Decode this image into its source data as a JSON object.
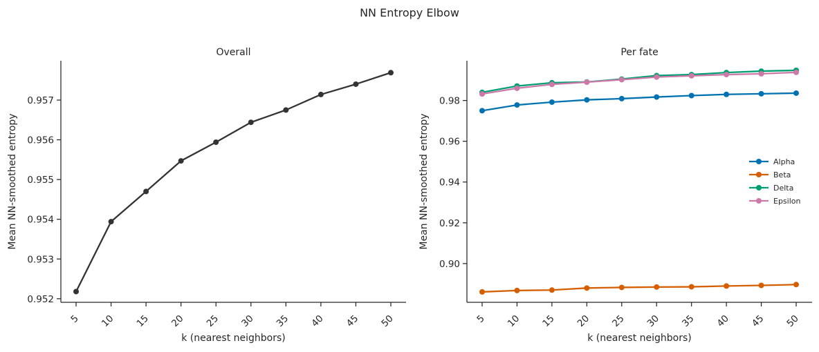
{
  "figure": {
    "title": "NN Entropy Elbow"
  },
  "chart_data": [
    {
      "type": "line",
      "title": "Overall",
      "xlabel": "k (nearest neighbors)",
      "ylabel": "Mean NN-smoothed entropy",
      "x": [
        5,
        10,
        15,
        20,
        25,
        30,
        35,
        40,
        45,
        50
      ],
      "x_tick_labels": [
        "5",
        "10",
        "15",
        "20",
        "25",
        "30",
        "35",
        "40",
        "45",
        "50"
      ],
      "ylim": [
        0.95191,
        0.95799
      ],
      "y_ticks": [
        0.952,
        0.953,
        0.954,
        0.955,
        0.956,
        0.957
      ],
      "y_tick_labels": [
        "0.952",
        "0.953",
        "0.954",
        "0.955",
        "0.956",
        "0.957"
      ],
      "grid": false,
      "series": [
        {
          "color": "#333333",
          "values": [
            0.95218,
            0.95394,
            0.9547,
            0.95547,
            0.95594,
            0.95644,
            0.95675,
            0.95714,
            0.9574,
            0.95769
          ]
        }
      ]
    },
    {
      "type": "line",
      "title": "Per fate",
      "xlabel": "k (nearest neighbors)",
      "ylabel": "Mean NN-smoothed entropy",
      "x": [
        5,
        10,
        15,
        20,
        25,
        30,
        35,
        40,
        45,
        50
      ],
      "x_tick_labels": [
        "5",
        "10",
        "15",
        "20",
        "25",
        "30",
        "35",
        "40",
        "45",
        "50"
      ],
      "ylim": [
        0.881,
        0.9995
      ],
      "y_ticks": [
        0.9,
        0.92,
        0.94,
        0.96,
        0.98
      ],
      "y_tick_labels": [
        "0.90",
        "0.92",
        "0.94",
        "0.96",
        "0.98"
      ],
      "grid": false,
      "legend": "center-right",
      "series": [
        {
          "name": "Alpha",
          "color": "#0072b2",
          "values": [
            0.975,
            0.9778,
            0.9792,
            0.9803,
            0.9809,
            0.9817,
            0.9824,
            0.983,
            0.9833,
            0.9836
          ]
        },
        {
          "name": "Beta",
          "color": "#d55e00",
          "values": [
            0.8861,
            0.8868,
            0.887,
            0.888,
            0.8883,
            0.8885,
            0.8886,
            0.889,
            0.8893,
            0.8897
          ]
        },
        {
          "name": "Delta",
          "color": "#009e73",
          "values": [
            0.984,
            0.9871,
            0.9887,
            0.9891,
            0.9905,
            0.9922,
            0.9927,
            0.9937,
            0.9944,
            0.9948
          ]
        },
        {
          "name": "Epsilon",
          "color": "#cc79a7",
          "values": [
            0.9832,
            0.986,
            0.9879,
            0.989,
            0.9902,
            0.9915,
            0.9921,
            0.9927,
            0.9931,
            0.9938
          ]
        }
      ]
    }
  ]
}
